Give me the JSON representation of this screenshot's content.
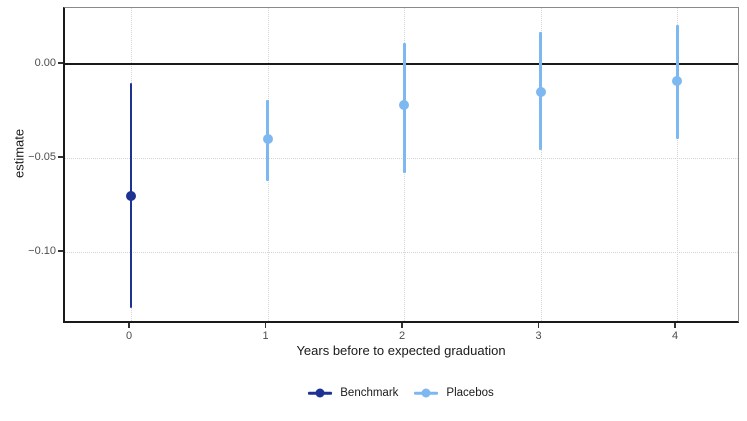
{
  "chart_data": {
    "type": "scatter",
    "subtype": "pointrange",
    "title": "",
    "xlabel": "Years before to expected graduation",
    "ylabel": "estimate",
    "x_tick_values": [
      0,
      1,
      2,
      3,
      4
    ],
    "x_tick_labels": [
      "0",
      "1",
      "2",
      "3",
      "4"
    ],
    "y_tick_values": [
      0,
      -0.05,
      -0.1
    ],
    "y_tick_labels": [
      "0.00",
      "−0.05",
      "−0.10"
    ],
    "xlim": [
      -0.4835,
      4.4685
    ],
    "ylim": [
      -0.1383,
      0.0298
    ],
    "reference_line_y": 0,
    "grid_style": "dotted",
    "legend_position": "bottom",
    "series": [
      {
        "name": "Benchmark",
        "color": "#1d3293",
        "points": [
          {
            "x": 0,
            "y": -0.07,
            "ci_low": -0.13,
            "ci_high": -0.01
          }
        ]
      },
      {
        "name": "Placebos",
        "color": "#7db9f0",
        "points": [
          {
            "x": 1,
            "y": -0.04,
            "ci_low": -0.062,
            "ci_high": -0.019
          },
          {
            "x": 2,
            "y": -0.022,
            "ci_low": -0.058,
            "ci_high": 0.011
          },
          {
            "x": 3,
            "y": -0.015,
            "ci_low": -0.046,
            "ci_high": 0.017
          },
          {
            "x": 4,
            "y": -0.009,
            "ci_low": -0.04,
            "ci_high": 0.021
          }
        ]
      }
    ],
    "colors": {
      "background": "#ffffff",
      "grid": "#d4d4d4",
      "axis_text": "#4d4d4d",
      "axis_title": "#1a1a1a",
      "axis_line": "#1a1a1a",
      "panel_border": "#8a8a8a",
      "zero_line": "#1a1a1a"
    }
  }
}
